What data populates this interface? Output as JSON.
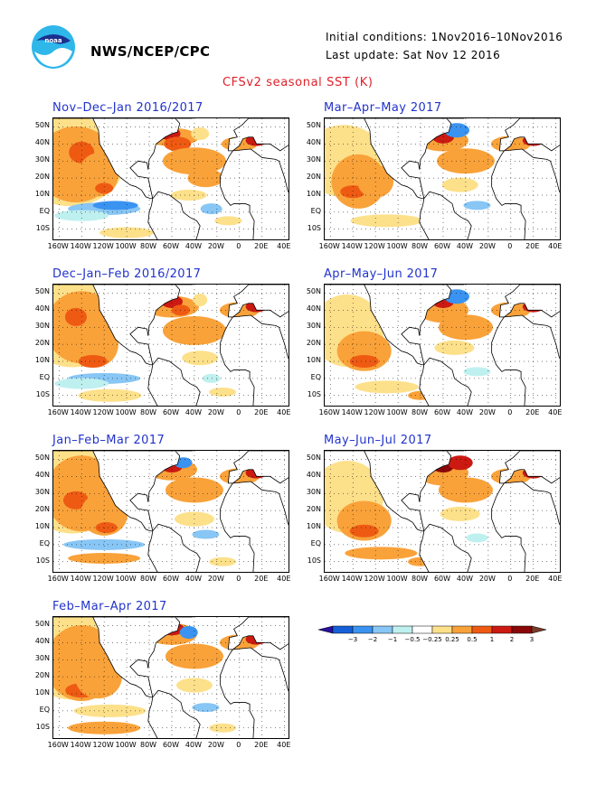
{
  "header": {
    "org": "NWS/NCEP/CPC",
    "initial_conditions": "Initial conditions: 1Nov2016–10Nov2016",
    "last_update": "Last update: Sat Nov 12 2016",
    "title": "CFSv2 seasonal SST (K)"
  },
  "logo": {
    "name": "noaa-logo"
  },
  "panels": [
    {
      "title": "Nov–Dec–Jan 2016/2017"
    },
    {
      "title": "Dec–Jan–Feb 2016/2017"
    },
    {
      "title": "Jan–Feb–Mar 2017"
    },
    {
      "title": "Feb–Mar–Apr 2017"
    },
    {
      "title": "Mar–Apr–May 2017"
    },
    {
      "title": "Apr–May–Jun 2017"
    },
    {
      "title": "May–Jun–Jul 2017"
    }
  ],
  "axes": {
    "lat_labels": [
      "50N",
      "40N",
      "30N",
      "20N",
      "10N",
      "EQ",
      "10S"
    ],
    "lon_labels": [
      "160W",
      "140W",
      "120W",
      "100W",
      "80W",
      "60W",
      "40W",
      "20W",
      "0",
      "20E",
      "40E"
    ]
  },
  "colorbar": {
    "ticks": [
      "−3",
      "−2",
      "−1",
      "−0.5",
      "−0.25",
      "0.25",
      "0.5",
      "1",
      "2",
      "3"
    ],
    "colors": [
      "#2a0fa0",
      "#1560d8",
      "#3a93f0",
      "#88c6f5",
      "#bff0f0",
      "#ffffff",
      "#fde08a",
      "#f9a23a",
      "#ef5a13",
      "#cc1a12",
      "#8a0808",
      "#7a3a2a"
    ]
  }
}
